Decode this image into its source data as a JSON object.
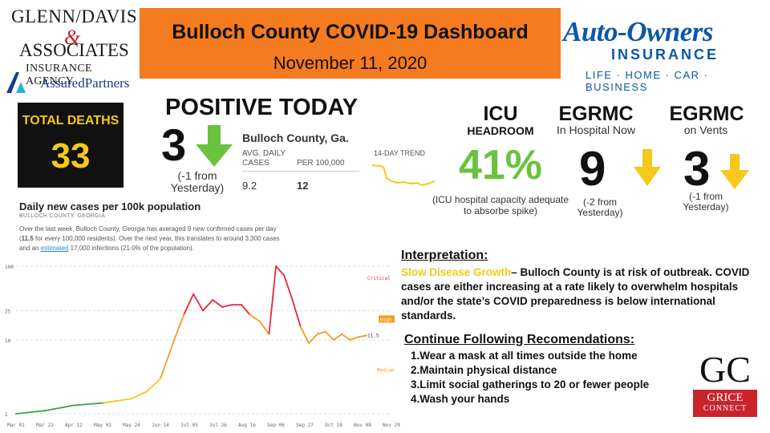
{
  "sponsor_left": {
    "line1": "GLENN/DAVIS",
    "amp": "&",
    "line2": "ASSOCIATES",
    "line3": "INSURANCE AGENCY",
    "line4": "AssuredPartners"
  },
  "header": {
    "title": "Bulloch County COVID-19 Dashboard",
    "date": "November 11, 2020"
  },
  "sponsor_right": {
    "name": "Auto-Owners",
    "sub": "INSURANCE",
    "tagline": "LIFE · HOME · CAR · BUSINESS"
  },
  "total_deaths": {
    "label": "TOTAL DEATHS",
    "value": "33"
  },
  "positive_today": {
    "title": "POSITIVE TODAY",
    "value": "3",
    "change": "(-1 from Yesterday)",
    "trend": "down"
  },
  "county_table": {
    "county": "Bulloch County, Ga.",
    "col_avg": "AVG. DAILY CASES",
    "col_per": "PER 100,000",
    "avg_value": "9.2",
    "per_value": "12",
    "trend_label": "14-DAY TREND"
  },
  "icu": {
    "title": "ICU",
    "subtitle": "HEADROOM",
    "value": "41%",
    "note": "(ICU hospital capacity adequate to absorbe spike)"
  },
  "egrmc_hospital": {
    "title": "EGRMC",
    "subtitle": "In Hospital Now",
    "value": "9",
    "change": "(-2 from Yesterday)"
  },
  "egrmc_vents": {
    "title": "EGRMC",
    "subtitle": "on Vents",
    "value": "3",
    "change": "(-1 from Yesterday)"
  },
  "daily_chart": {
    "title": "Daily new cases per 100k population",
    "subtitle": "BULLOCH COUNTY, GEORGIA",
    "desc_1": "Over the last week, Bulloch County, Georgia has averaged 9 new confirmed cases per day (",
    "desc_bold": "11.5",
    "desc_2": " for every 100,000 residents). Over the next year, this translates to around 3,300 cases and an ",
    "desc_link": "estimated",
    "desc_3": " 17,000 infections (21.0% of the population)."
  },
  "chart_data": {
    "type": "line",
    "title": "Daily new cases per 100k population",
    "x_ticks": [
      "Mar 01",
      "Mar 22",
      "Apr 12",
      "May 03",
      "May 24",
      "Jun 14",
      "Jul 05",
      "Jul 26",
      "Aug 16",
      "Sep 06",
      "Sep 27",
      "Oct 18",
      "Nov 08",
      "Nov 29"
    ],
    "y_ticks": [
      "100",
      "25",
      "10",
      "1"
    ],
    "threshold_labels": {
      "critical": "Critical",
      "high": "High",
      "medium": "Medium"
    },
    "last_value": "11.5",
    "series": [
      {
        "x": [
          "Mar 01",
          "Mar 22",
          "Apr 12",
          "May 03",
          "May 24",
          "Jun 04",
          "Jun 14",
          "Jun 24",
          "Jul 01",
          "Jul 08",
          "Jul 15",
          "Jul 22",
          "Jul 29",
          "Aug 05",
          "Aug 12",
          "Aug 18",
          "Aug 25",
          "Sep 01",
          "Sep 06",
          "Sep 12",
          "Sep 18",
          "Sep 24",
          "Sep 30",
          "Oct 06",
          "Oct 12",
          "Oct 18",
          "Oct 24",
          "Oct 30",
          "Nov 05",
          "Nov 11"
        ],
        "values": [
          1,
          1.1,
          1.3,
          1.4,
          1.6,
          2,
          3,
          10,
          22,
          42,
          25,
          35,
          28,
          30,
          30,
          22,
          18,
          12,
          100,
          75,
          35,
          15,
          9,
          12,
          13,
          10,
          12,
          10,
          11,
          11.5
        ]
      }
    ]
  },
  "interpretation": {
    "title": "Interpretation:",
    "risk": "Slow Disease Growth",
    "text": "– Bulloch County is at risk of outbreak. COVID cases are either increasing at a rate likely to overwhelm hospitals and/or the state’s COVID preparedness is below international standards."
  },
  "recommendations": {
    "title": "Continue Following Recomendations:",
    "items": [
      "1.Wear a mask at all times outside the home",
      "2.Maintain physical distance",
      "3.Limit social gatherings to 20 or fewer people",
      "4.Wash your hands"
    ]
  },
  "grice": {
    "initials": "GC",
    "line1": "GRICE",
    "line2": "CONNECT"
  },
  "colors": {
    "header_orange": "#f47b20",
    "green_arrow": "#6ac23f",
    "yellow_arrow": "#f5c81a",
    "critical_red": "#e8263b",
    "high_orange": "#f59d1a"
  }
}
